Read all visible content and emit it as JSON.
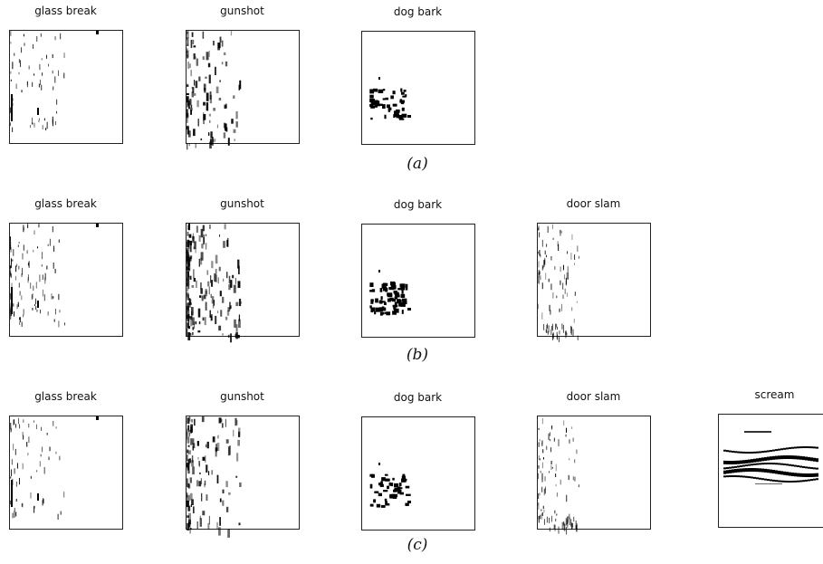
{
  "rows": [
    {
      "caption": "(a)",
      "panels": [
        {
          "title": "glass break"
        },
        {
          "title": "gunshot"
        },
        {
          "title": "dog bark"
        }
      ]
    },
    {
      "caption": "(b)",
      "panels": [
        {
          "title": "glass break"
        },
        {
          "title": "gunshot"
        },
        {
          "title": "dog bark"
        },
        {
          "title": "door slam"
        }
      ]
    },
    {
      "caption": "(c)",
      "panels": [
        {
          "title": "glass break"
        },
        {
          "title": "gunshot"
        },
        {
          "title": "dog bark"
        },
        {
          "title": "door slam"
        },
        {
          "title": "scream"
        }
      ]
    }
  ]
}
